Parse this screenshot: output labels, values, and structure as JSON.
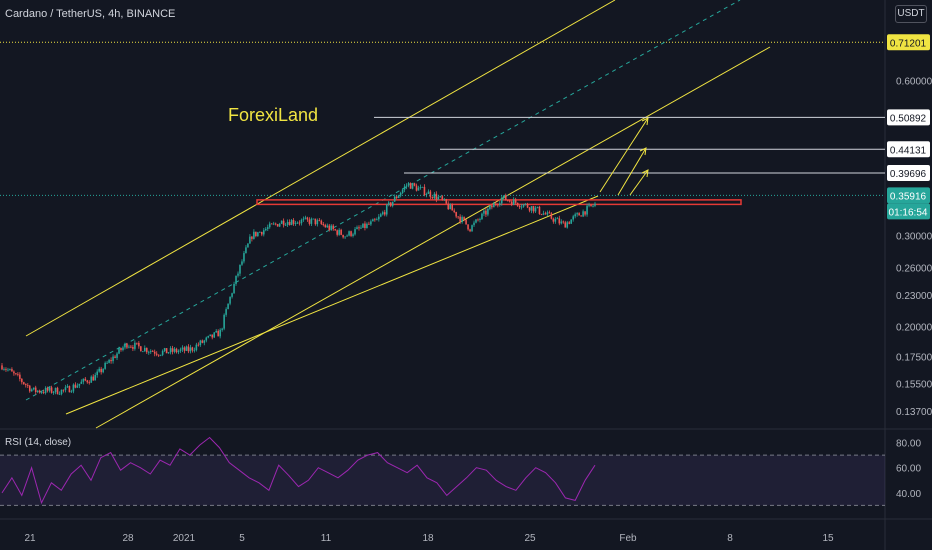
{
  "header": {
    "title": "Cardano / TetherUS, 4h, BINANCE",
    "currency": "USDT"
  },
  "colors": {
    "background": "#131722",
    "up": "#26a69a",
    "down": "#ef5350",
    "channel": "#f0e442",
    "dotted_target": "#f0e442",
    "current_price": "#26a69a",
    "resistance": "#e53935",
    "rsi": "#9c27b0"
  },
  "chart_data": {
    "type": "candlestick",
    "y_scale": "log",
    "ylim": [
      0.127,
      0.86
    ],
    "x_axis_ticks": [
      "21",
      "28",
      "2021",
      "5",
      "11",
      "18",
      "25",
      "Feb",
      "8",
      "15"
    ],
    "y_axis_ticks": [
      0.6,
      0.3,
      0.26,
      0.23,
      0.2,
      0.175,
      0.155,
      0.137
    ],
    "price_labels": [
      {
        "value": "0.71201",
        "kind": "dotted-line"
      },
      {
        "value": "0.50892",
        "kind": "target"
      },
      {
        "value": "0.44131",
        "kind": "target"
      },
      {
        "value": "0.39696",
        "kind": "target"
      },
      {
        "value": "0.35916",
        "kind": "current"
      },
      {
        "value": "01:16:54",
        "kind": "countdown"
      }
    ],
    "targets": [
      0.50892,
      0.44131,
      0.39696
    ],
    "current_price": 0.35916,
    "dotted_level": 0.71201,
    "resistance_zone": [
      0.345,
      0.352
    ],
    "price_path": [
      [
        0.168,
        0.168
      ],
      [
        0.15,
        0.135
      ],
      [
        0.15,
        0.165
      ],
      [
        0.16,
        0.172
      ],
      [
        0.185,
        0.19
      ],
      [
        0.178,
        0.176
      ],
      [
        0.18,
        0.172
      ],
      [
        0.195,
        0.21
      ],
      [
        0.3,
        0.345
      ],
      [
        0.32,
        0.33
      ],
      [
        0.32,
        0.256
      ],
      [
        0.3,
        0.3
      ],
      [
        0.32,
        0.36
      ],
      [
        0.378,
        0.37
      ],
      [
        0.355,
        0.34
      ],
      [
        0.31,
        0.34
      ],
      [
        0.355,
        0.35
      ],
      [
        0.34,
        0.322
      ],
      [
        0.315,
        0.335
      ],
      [
        0.345,
        0.365
      ]
    ],
    "annotation": "ForexiLand",
    "rsi": {
      "label": "RSI (14, close)",
      "ticks": [
        80,
        60,
        40
      ],
      "bands": [
        70,
        30
      ],
      "ylim": [
        20,
        90
      ],
      "values": [
        40,
        52,
        38,
        60,
        32,
        48,
        42,
        55,
        62,
        50,
        68,
        72,
        58,
        64,
        60,
        55,
        66,
        62,
        75,
        70,
        78,
        84,
        76,
        64,
        58,
        52,
        48,
        42,
        62,
        54,
        45,
        50,
        60,
        56,
        52,
        58,
        66,
        70,
        72,
        64,
        60,
        56,
        62,
        52,
        48,
        38,
        45,
        52,
        60,
        58,
        50,
        45,
        42,
        52,
        60,
        56,
        48,
        36,
        34,
        50,
        62
      ]
    },
    "x_days_span": [
      21,
      44
    ]
  }
}
